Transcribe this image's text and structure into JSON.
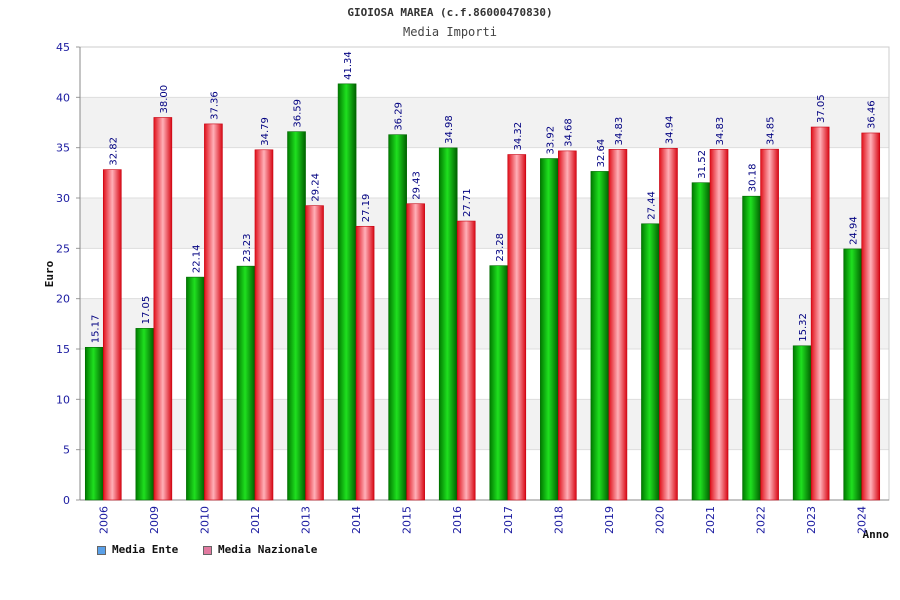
{
  "chart_data": {
    "type": "bar",
    "title": "GIOIOSA MAREA (c.f.86000470830)",
    "subtitle": "Media Importi",
    "xlabel": "Anno",
    "ylabel": "Euro",
    "ylim": [
      0,
      45
    ],
    "yticks": [
      0,
      5,
      10,
      15,
      20,
      25,
      30,
      35,
      40,
      45
    ],
    "grid": true,
    "legend_position": "bottom-left",
    "categories": [
      "2006",
      "2009",
      "2010",
      "2012",
      "2013",
      "2014",
      "2015",
      "2016",
      "2017",
      "2018",
      "2019",
      "2020",
      "2021",
      "2022",
      "2023",
      "2024"
    ],
    "series": [
      {
        "name": "Media Ente",
        "color": "#00c000",
        "legend_color": "#5aa0e8",
        "values": [
          15.17,
          17.05,
          22.14,
          23.23,
          36.59,
          41.34,
          36.29,
          34.98,
          23.28,
          33.92,
          32.64,
          27.44,
          31.52,
          30.18,
          15.32,
          24.94
        ],
        "labels": [
          "15.17",
          "17.05",
          "22.14",
          "23.23",
          "36.59",
          "41.34",
          "36.29",
          "34.98",
          "23.28",
          "33.92",
          "32.64",
          "27.44",
          "31.52",
          "30.18",
          "15.32",
          "24.94"
        ]
      },
      {
        "name": "Media Nazionale",
        "color": "#e8202a",
        "legend_color": "#e27aa0",
        "values": [
          32.82,
          38.0,
          37.36,
          34.79,
          29.24,
          27.19,
          29.43,
          27.71,
          34.32,
          34.68,
          34.83,
          34.94,
          34.83,
          34.85,
          37.05,
          36.46
        ],
        "labels": [
          "32.82",
          "38.00",
          "37.36",
          "34.79",
          "29.24",
          "27.19",
          "29.43",
          "27.71",
          "34.32",
          "34.68",
          "34.83",
          "34.94",
          "34.83",
          "34.85",
          "37.05",
          "36.46"
        ]
      }
    ]
  }
}
